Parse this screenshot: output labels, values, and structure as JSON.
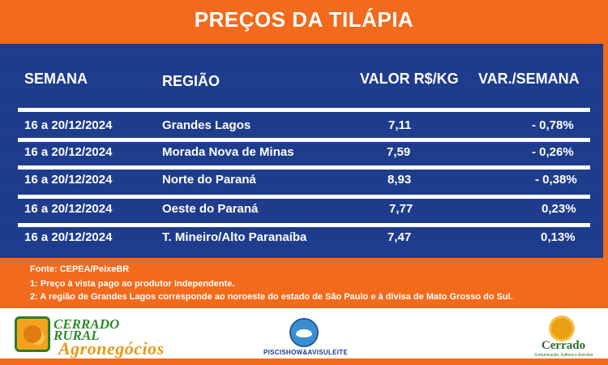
{
  "title": "PREÇOS DA TILÁPIA",
  "table": {
    "headers": [
      "SEMANA",
      "REGIÃO",
      "VALOR R$/KG",
      "VAR./SEMANA"
    ],
    "rows": [
      [
        "16 a 20/12/2024",
        "Grandes Lagos",
        "7,11",
        "- 0,78%"
      ],
      [
        "16 a 20/12/2024",
        "Morada Nova de Minas",
        "7,59",
        "- 0,26%"
      ],
      [
        "16 a 20/12/2024",
        "Norte do Paraná",
        "8,93",
        "- 0,38%"
      ],
      [
        "16 a 20/12/2024",
        "Oeste do Paraná",
        "7,77",
        "0,23%"
      ],
      [
        "16 a 20/12/2024",
        "T. Mineiro/Alto Paranaíba",
        "7,47",
        "0,13%"
      ]
    ]
  },
  "notes": [
    "Fonte: CEPEA/PeixeBR",
    "1: Preço à vista pago ao produtor independente.",
    "2: A região de Grandes Lagos corresponde ao noroeste do estado de São Paulo e à divisa de Mato Grosso do Sul."
  ],
  "logos": {
    "left": {
      "line1": "CERRADO",
      "line2": "RURAL",
      "line3": "Agronegócios"
    },
    "middle": {
      "label": "PISCISHOW&AVISULEITE"
    },
    "right": {
      "name": "Cerrado",
      "sub": "Comunicação, Editora e Eventos"
    }
  },
  "colors": {
    "accent": "#f26a1b",
    "panel": "#1c3a8c",
    "text": "#ffffff"
  }
}
